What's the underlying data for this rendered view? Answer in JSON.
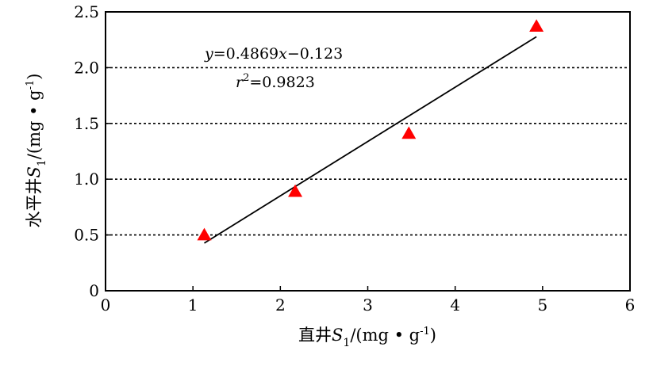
{
  "chart_data": {
    "type": "scatter",
    "title": "",
    "xlabel": {
      "main": "直井",
      "var": "S",
      "sub": "1",
      "unit_pre": "/(mg • g",
      "unit_sup": "-1",
      "unit_post": ")"
    },
    "ylabel": {
      "main": "水平井",
      "var": "S",
      "sub": "1",
      "unit_pre": "/(mg • g",
      "unit_sup": "-1",
      "unit_post": ")"
    },
    "xlim": [
      0,
      6
    ],
    "ylim": [
      0,
      2.5
    ],
    "xticks": [
      "0",
      "1",
      "2",
      "3",
      "4",
      "5",
      "6"
    ],
    "yticks": [
      "0",
      "0.5",
      "1.0",
      "1.5",
      "2.0",
      "2.5"
    ],
    "ytick_values": [
      0,
      0.5,
      1.0,
      1.5,
      2.0,
      2.5
    ],
    "grid": "horizontal-dotted",
    "marker": "triangle",
    "marker_color": "#ff0000",
    "points": [
      {
        "x": 1.13,
        "y": 0.5
      },
      {
        "x": 2.17,
        "y": 0.89
      },
      {
        "x": 3.47,
        "y": 1.41
      },
      {
        "x": 4.93,
        "y": 2.37
      }
    ],
    "fit": {
      "slope": 0.4869,
      "intercept": -0.123,
      "x_range": [
        1.13,
        4.93
      ],
      "equation": {
        "y": "y",
        "eq": "=0.4869",
        "x": "x",
        "rest": "−0.123"
      },
      "r2": {
        "r": "r",
        "sup": "2",
        "rest": "=0.9823"
      }
    }
  }
}
